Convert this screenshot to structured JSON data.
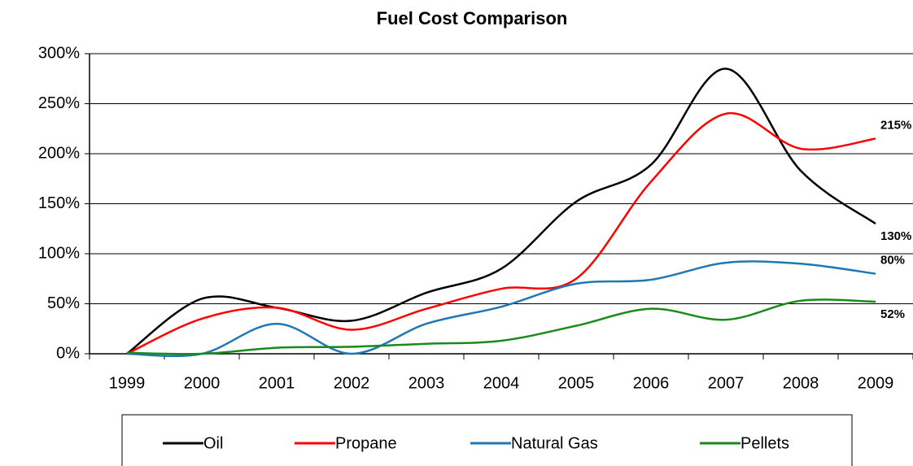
{
  "chart_data": {
    "type": "line",
    "title": "Fuel Cost Comparison",
    "categories": [
      "1999",
      "2000",
      "2001",
      "2002",
      "2003",
      "2004",
      "2005",
      "2006",
      "2007",
      "2008",
      "2009"
    ],
    "series": [
      {
        "name": "Oil",
        "color": "#000000",
        "values": [
          0,
          55,
          46,
          33,
          61,
          85,
          152,
          189,
          285,
          183,
          130
        ],
        "value_labels": [
          null,
          null,
          null,
          null,
          null,
          null,
          null,
          null,
          null,
          null,
          "130%"
        ]
      },
      {
        "name": "Propane",
        "color": "#ff0000",
        "values": [
          0,
          35,
          46,
          24,
          45,
          65,
          75,
          172,
          240,
          205,
          215
        ],
        "value_labels": [
          null,
          null,
          null,
          null,
          null,
          null,
          null,
          null,
          null,
          null,
          "215%"
        ]
      },
      {
        "name": "Natural Gas",
        "color": "#1f77b4",
        "values": [
          0,
          0,
          30,
          0,
          30,
          47,
          70,
          74,
          91,
          90,
          80
        ],
        "value_labels": [
          null,
          null,
          null,
          null,
          null,
          null,
          null,
          null,
          null,
          null,
          "80%"
        ]
      },
      {
        "name": "Pellets",
        "color": "#1a8a1a",
        "values": [
          1,
          0,
          6,
          7,
          10,
          13,
          28,
          45,
          34,
          53,
          52
        ],
        "value_labels": [
          null,
          null,
          null,
          null,
          null,
          null,
          null,
          null,
          null,
          null,
          "52%"
        ]
      }
    ],
    "ylim": [
      0,
      300
    ],
    "yticks": [
      {
        "value": 0,
        "label": "0%"
      },
      {
        "value": 50,
        "label": "50%"
      },
      {
        "value": 100,
        "label": "100%"
      },
      {
        "value": 150,
        "label": "150%"
      },
      {
        "value": 200,
        "label": "200%"
      },
      {
        "value": 250,
        "label": "250%"
      },
      {
        "value": 300,
        "label": "300%"
      }
    ],
    "grid": true,
    "legend": "bottom"
  }
}
